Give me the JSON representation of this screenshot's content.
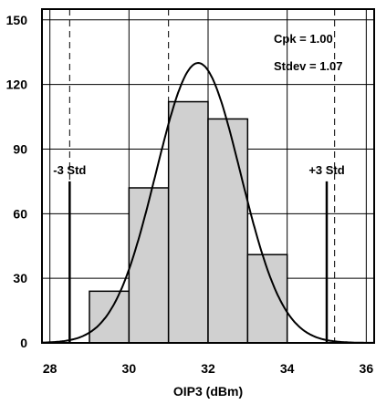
{
  "chart_data": {
    "type": "bar",
    "xlabel": "OIP3 (dBm)",
    "ylabel": "",
    "xlim": [
      27.8,
      36.2
    ],
    "ylim": [
      0,
      155
    ],
    "x_ticks": [
      28,
      30,
      32,
      34,
      36
    ],
    "y_ticks": [
      0,
      30,
      60,
      90,
      120,
      150
    ],
    "x_tick_labels": [
      "28",
      "30",
      "32",
      "34",
      "36"
    ],
    "y_tick_labels": [
      "0",
      "30",
      "60",
      "90",
      "120",
      "150"
    ],
    "grid": true,
    "bins": [
      {
        "x0": 29,
        "x1": 30,
        "value": 24
      },
      {
        "x0": 30,
        "x1": 31,
        "value": 72
      },
      {
        "x0": 31,
        "x1": 32,
        "value": 112
      },
      {
        "x0": 32,
        "x1": 33,
        "value": 104
      },
      {
        "x0": 33,
        "x1": 34,
        "value": 41
      }
    ],
    "normal_curve": {
      "mean": 31.75,
      "stdev": 1.07,
      "peak": 130
    },
    "std_markers": [
      {
        "label": "-3 Std",
        "x": 28.5,
        "height": 75
      },
      {
        "label": "+3 Std",
        "x": 35.0,
        "height": 75
      }
    ],
    "dashed_lines_x": [
      28.5,
      31.0,
      35.2
    ],
    "annotations": [
      "Cpk = 1.00",
      "Stdev = 1.07"
    ]
  }
}
